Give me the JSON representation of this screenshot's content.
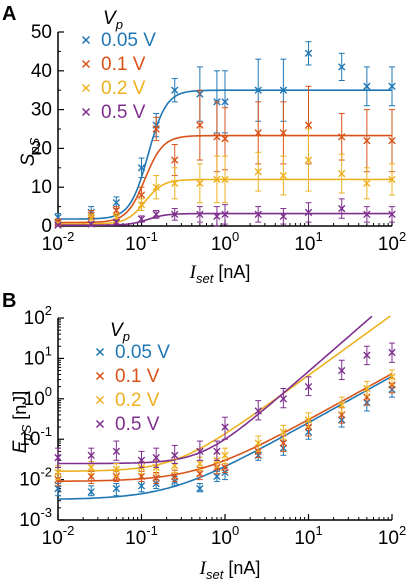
{
  "colors": {
    "0.05 V": "#1f77b4",
    "0.1 V": "#d95319",
    "0.2 V": "#edb120",
    "0.5 V": "#7e2f8e",
    "axis": "#000000"
  },
  "chart_data": [
    {
      "panel_label": "A",
      "type": "scatter",
      "xscale": "log",
      "yscale": "linear",
      "xlim": [
        0.01,
        100
      ],
      "ylim": [
        0,
        50
      ],
      "xlabel_main": "I",
      "xlabel_sub": "set",
      "xlabel_unit": "[nA]",
      "ylabel_main": "S",
      "ylabel_sub": "pS",
      "legend_title_main": "V",
      "legend_title_sub": "p",
      "legend_position": "top-left",
      "grid": false,
      "x_ticks": [
        {
          "value": 0.01,
          "base": "10",
          "exp": "-2"
        },
        {
          "value": 0.1,
          "base": "10",
          "exp": "-1"
        },
        {
          "value": 1,
          "base": "10",
          "exp": "0"
        },
        {
          "value": 10,
          "base": "10",
          "exp": "1"
        },
        {
          "value": 100,
          "base": "10",
          "exp": "2"
        }
      ],
      "y_ticks": [
        {
          "value": 0,
          "label": "0"
        },
        {
          "value": 10,
          "label": "10"
        },
        {
          "value": 20,
          "label": "20"
        },
        {
          "value": 30,
          "label": "30"
        },
        {
          "value": 40,
          "label": "40"
        },
        {
          "value": 50,
          "label": "50"
        }
      ],
      "series": [
        {
          "name": "0.05 V",
          "points": [
            [
              0.01,
              2.2,
              1.0
            ],
            [
              0.025,
              3.5,
              1.5
            ],
            [
              0.05,
              6,
              1.5
            ],
            [
              0.1,
              15,
              2.5
            ],
            [
              0.15,
              26,
              3
            ],
            [
              0.25,
              35,
              3
            ],
            [
              0.5,
              34,
              7
            ],
            [
              0.8,
              32,
              8
            ],
            [
              1,
              32,
              8
            ],
            [
              2.5,
              35,
              8
            ],
            [
              5,
              35,
              8
            ],
            [
              10,
              44.5,
              3
            ],
            [
              25,
              41,
              3.5
            ],
            [
              50,
              36,
              5
            ],
            [
              100,
              36,
              5
            ]
          ],
          "fit": {
            "base": 1.8,
            "amp": 33.2,
            "x50": 0.12,
            "n": 4
          }
        },
        {
          "name": "0.1 V",
          "points": [
            [
              0.01,
              1.0,
              0.8
            ],
            [
              0.025,
              2.8,
              1.2
            ],
            [
              0.05,
              4,
              1
            ],
            [
              0.1,
              8,
              2
            ],
            [
              0.15,
              25,
              3
            ],
            [
              0.25,
              17,
              4
            ],
            [
              0.5,
              26,
              9
            ],
            [
              0.8,
              23,
              9
            ],
            [
              1,
              22.5,
              8
            ],
            [
              2.5,
              24,
              8
            ],
            [
              5,
              24,
              8
            ],
            [
              10,
              26,
              10
            ],
            [
              25,
              23,
              6
            ],
            [
              50,
              22,
              8
            ],
            [
              100,
              22,
              8
            ]
          ],
          "fit": {
            "base": 0.9,
            "amp": 22.4,
            "x50": 0.11,
            "n": 4
          }
        },
        {
          "name": "0.2 V",
          "points": [
            [
              0.01,
              0.4,
              0.5
            ],
            [
              0.025,
              2.0,
              1
            ],
            [
              0.05,
              2.2,
              1
            ],
            [
              0.1,
              5.5,
              1.5
            ],
            [
              0.15,
              10,
              3
            ],
            [
              0.25,
              11,
              4
            ],
            [
              0.5,
              11,
              5
            ],
            [
              0.8,
              12,
              6
            ],
            [
              1,
              12,
              6
            ],
            [
              2.5,
              14,
              5
            ],
            [
              5,
              13,
              5
            ],
            [
              10,
              17,
              8
            ],
            [
              25,
              13.5,
              5
            ],
            [
              50,
              11,
              4
            ],
            [
              100,
              12,
              4
            ]
          ],
          "fit": {
            "base": 0.5,
            "amp": 11.5,
            "x50": 0.11,
            "n": 4
          }
        },
        {
          "name": "0.5 V",
          "points": [
            [
              0.01,
              0.2,
              0.3
            ],
            [
              0.025,
              0.5,
              0.5
            ],
            [
              0.05,
              1.0,
              0.5
            ],
            [
              0.1,
              1.8,
              0.8
            ],
            [
              0.15,
              3,
              1
            ],
            [
              0.25,
              3,
              1.5
            ],
            [
              0.5,
              3,
              2
            ],
            [
              0.8,
              2.5,
              2.5
            ],
            [
              1,
              3,
              2.5
            ],
            [
              2.5,
              3,
              2
            ],
            [
              5,
              2.5,
              2
            ],
            [
              10,
              3.5,
              2.5
            ],
            [
              25,
              4.5,
              2.5
            ],
            [
              50,
              3,
              2
            ],
            [
              100,
              3,
              2
            ]
          ],
          "fit": {
            "base": 0.2,
            "amp": 3.0,
            "x50": 0.12,
            "n": 4
          }
        }
      ]
    },
    {
      "panel_label": "B",
      "type": "scatter",
      "xscale": "log",
      "yscale": "log",
      "xlim": [
        0.01,
        100
      ],
      "ylim": [
        0.001,
        100
      ],
      "xlabel_main": "I",
      "xlabel_sub": "set",
      "xlabel_unit": "[nA]",
      "ylabel_main": "E",
      "ylabel_sub": "pS",
      "ylabel_unit": "[nJ]",
      "legend_title_main": "V",
      "legend_title_sub": "p",
      "legend_position": "top-left",
      "grid": false,
      "x_ticks": [
        {
          "value": 0.01,
          "base": "10",
          "exp": "-2"
        },
        {
          "value": 0.1,
          "base": "10",
          "exp": "-1"
        },
        {
          "value": 1,
          "base": "10",
          "exp": "0"
        },
        {
          "value": 10,
          "base": "10",
          "exp": "1"
        },
        {
          "value": 100,
          "base": "10",
          "exp": "2"
        }
      ],
      "y_ticks": [
        {
          "value": 0.001,
          "base": "10",
          "exp": "-3"
        },
        {
          "value": 0.01,
          "base": "10",
          "exp": "-2"
        },
        {
          "value": 0.1,
          "base": "10",
          "exp": "-1"
        },
        {
          "value": 1,
          "base": "10",
          "exp": "0"
        },
        {
          "value": 10,
          "base": "10",
          "exp": "1"
        },
        {
          "value": 100,
          "base": "10",
          "exp": "2"
        }
      ],
      "series": [
        {
          "name": "0.05 V",
          "points": [
            [
              0.01,
              0.006,
              0.004,
              0.008
            ],
            [
              0.025,
              0.005,
              0.004,
              0.007
            ],
            [
              0.05,
              0.006,
              0.004,
              0.008
            ],
            [
              0.1,
              0.007,
              0.005,
              0.009
            ],
            [
              0.15,
              0.008,
              0.006,
              0.01
            ],
            [
              0.25,
              0.009,
              0.007,
              0.012
            ],
            [
              0.5,
              0.006,
              0.005,
              0.008
            ],
            [
              0.8,
              0.012,
              0.009,
              0.016
            ],
            [
              1,
              0.015,
              0.01,
              0.02
            ],
            [
              2.5,
              0.04,
              0.03,
              0.05
            ],
            [
              5,
              0.06,
              0.04,
              0.09
            ],
            [
              10,
              0.15,
              0.1,
              0.22
            ],
            [
              25,
              0.3,
              0.2,
              0.45
            ],
            [
              50,
              0.8,
              0.5,
              1.2
            ],
            [
              100,
              1.7,
              1.1,
              2.4
            ]
          ],
          "fit": {
            "c": 0.0032,
            "k": 0.018
          }
        },
        {
          "name": "0.1 V",
          "points": [
            [
              0.01,
              0.01,
              0.007,
              0.014
            ],
            [
              0.025,
              0.012,
              0.008,
              0.016
            ],
            [
              0.05,
              0.012,
              0.009,
              0.016
            ],
            [
              0.1,
              0.012,
              0.009,
              0.016
            ],
            [
              0.15,
              0.011,
              0.008,
              0.015
            ],
            [
              0.25,
              0.012,
              0.009,
              0.017
            ],
            [
              0.5,
              0.014,
              0.01,
              0.02
            ],
            [
              0.8,
              0.02,
              0.014,
              0.03
            ],
            [
              1,
              0.02,
              0.015,
              0.03
            ],
            [
              2.5,
              0.05,
              0.035,
              0.07
            ],
            [
              5,
              0.08,
              0.05,
              0.12
            ],
            [
              10,
              0.2,
              0.12,
              0.3
            ],
            [
              25,
              0.4,
              0.25,
              0.6
            ],
            [
              50,
              1.1,
              0.7,
              1.6
            ],
            [
              100,
              2.2,
              1.4,
              3.2
            ]
          ],
          "fit": {
            "c": 0.009,
            "k": 0.021
          }
        },
        {
          "name": "0.2 V",
          "points": [
            [
              0.01,
              0.015,
              0.01,
              0.022
            ],
            [
              0.025,
              0.02,
              0.014,
              0.028
            ],
            [
              0.05,
              0.018,
              0.012,
              0.025
            ],
            [
              0.1,
              0.02,
              0.014,
              0.028
            ],
            [
              0.15,
              0.02,
              0.014,
              0.03
            ],
            [
              0.25,
              0.022,
              0.015,
              0.032
            ],
            [
              0.5,
              0.025,
              0.017,
              0.036
            ],
            [
              0.8,
              0.03,
              0.02,
              0.045
            ],
            [
              1,
              0.04,
              0.025,
              0.06
            ],
            [
              2.5,
              0.08,
              0.05,
              0.12
            ],
            [
              5,
              0.15,
              0.1,
              0.22
            ],
            [
              10,
              0.3,
              0.2,
              0.45
            ],
            [
              25,
              0.7,
              0.45,
              1.1
            ],
            [
              50,
              1.8,
              1.2,
              2.7
            ],
            [
              100,
              3.5,
              2.3,
              5.2
            ]
          ],
          "fit": {
            "c": 0.016,
            "k": 0.12,
            "p": 1.5
          }
        },
        {
          "name": "0.5 V",
          "points": [
            [
              0.01,
              0.035,
              0.02,
              0.06
            ],
            [
              0.025,
              0.04,
              0.025,
              0.06
            ],
            [
              0.05,
              0.05,
              0.03,
              0.09
            ],
            [
              0.1,
              0.03,
              0.02,
              0.05
            ],
            [
              0.15,
              0.035,
              0.02,
              0.06
            ],
            [
              0.25,
              0.04,
              0.025,
              0.07
            ],
            [
              0.5,
              0.05,
              0.03,
              0.09
            ],
            [
              0.8,
              0.05,
              0.03,
              0.09
            ],
            [
              1,
              0.2,
              0.1,
              0.35
            ],
            [
              2.5,
              0.5,
              0.3,
              0.9
            ],
            [
              5,
              1.0,
              0.6,
              1.8
            ],
            [
              10,
              2.0,
              1.2,
              3.5
            ],
            [
              25,
              5,
              3,
              9
            ],
            [
              50,
              12,
              7,
              20
            ],
            [
              100,
              14,
              8,
              24
            ]
          ],
          "fit": {
            "c": 0.025,
            "k": 0.075,
            "p": 1.8
          }
        }
      ]
    }
  ]
}
